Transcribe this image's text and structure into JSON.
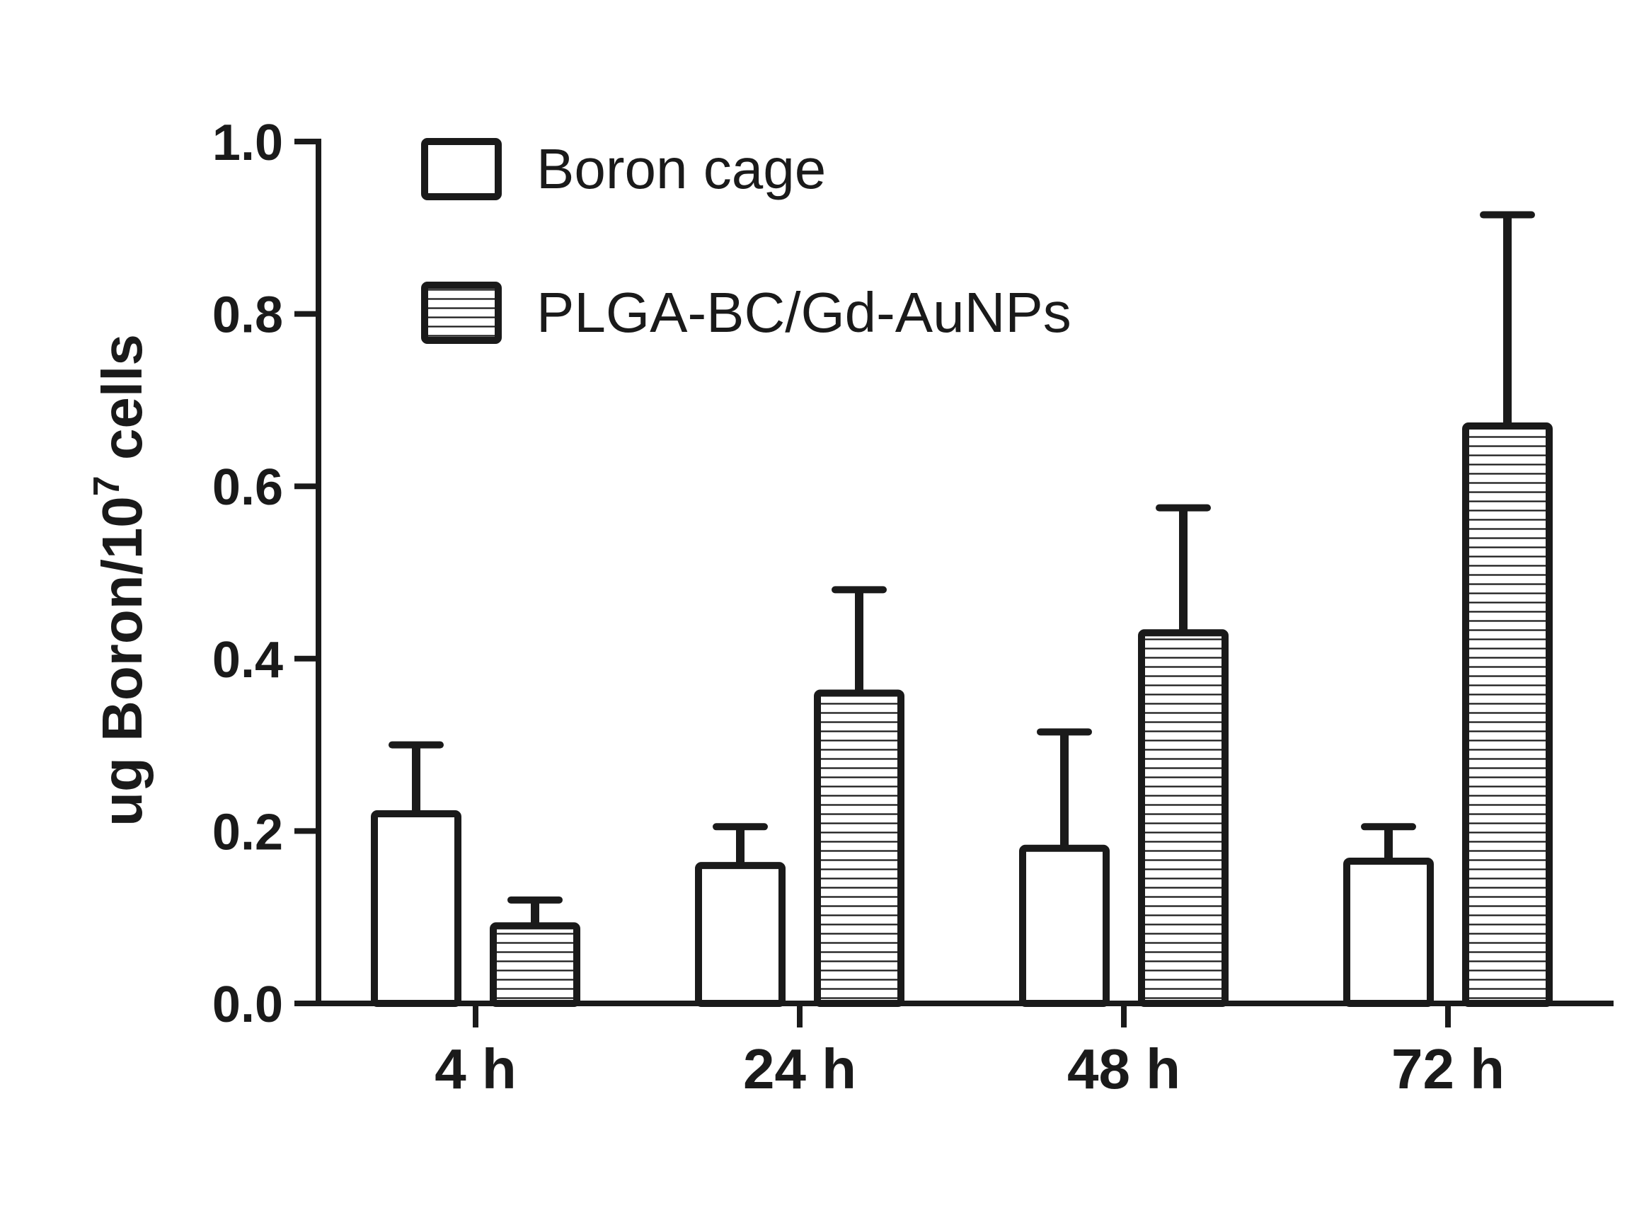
{
  "chart_data": {
    "type": "bar",
    "categories": [
      "4 h",
      "24 h",
      "48 h",
      "72 h"
    ],
    "series": [
      {
        "name": "Boron cage",
        "values": [
          0.22,
          0.16,
          0.18,
          0.165
        ],
        "errors": [
          0.08,
          0.045,
          0.135,
          0.04
        ],
        "pattern": "empty"
      },
      {
        "name": "PLGA-BC/Gd-AuNPs",
        "values": [
          0.09,
          0.36,
          0.43,
          0.67
        ],
        "errors": [
          0.03,
          0.12,
          0.145,
          0.245
        ],
        "pattern": "horizontal-stripes"
      }
    ],
    "title": "",
    "xlabel": "",
    "ylabel": {
      "main": "ug Boron/10",
      "superscript": "7",
      "suffix": " cells"
    },
    "ylim": [
      0,
      1.0
    ],
    "yticks": [
      "0.0",
      "0.2",
      "0.4",
      "0.6",
      "0.8",
      "1.0"
    ],
    "grid": false,
    "legend_position": "top-left",
    "colors": {
      "stroke": "#1a1a1a",
      "fill": "#ffffff"
    }
  }
}
